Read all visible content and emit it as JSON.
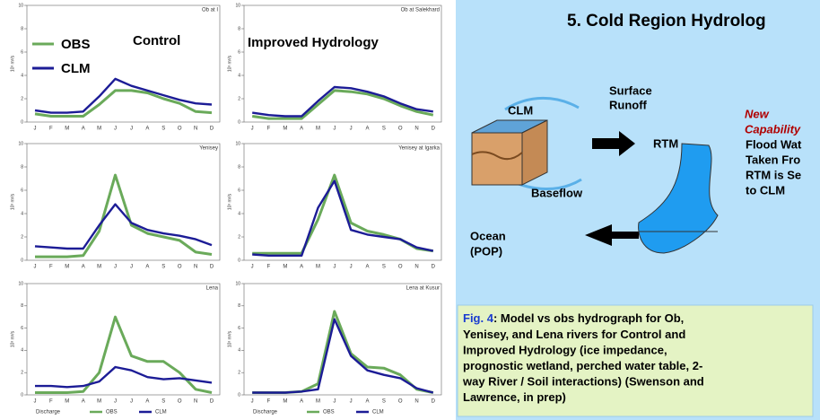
{
  "slide": {
    "title": "5. Cold Region Hydrolog",
    "control_label": "Control",
    "improved_label": "Improved Hydrology",
    "diagram": {
      "clm": "CLM",
      "surface_runoff": [
        "Surface",
        "Runoff"
      ],
      "rtm": "RTM",
      "baseflow": "Baseflow",
      "ocean": [
        "Ocean",
        "(POP)"
      ],
      "new_capability": [
        "New",
        "Capability"
      ],
      "note": [
        "Flood Wat",
        "Taken Fro",
        "RTM is Se",
        "to CLM"
      ]
    },
    "caption": {
      "label": "Fig. 4",
      "lines": [
        ":  Model vs obs hydrograph  for Ob,",
        "Yenisey, and Lena rivers for Control and",
        "Improved Hydrology (ice impedance,",
        "prognostic wetland, perched water table, 2-",
        "way River / Soil interactions) (Swenson and",
        "Lawrence, in prep)"
      ]
    }
  },
  "chart_data": [
    {
      "type": "line",
      "title": "Ob at I",
      "y_label": "10³ m³/s",
      "categories": [
        "J",
        "F",
        "M",
        "A",
        "M",
        "J",
        "J",
        "A",
        "S",
        "O",
        "N",
        "D"
      ],
      "ylim": [
        0,
        10
      ],
      "yticks": [
        0,
        2,
        4,
        6,
        8,
        10
      ],
      "series": [
        {
          "name": "OBS",
          "color": "#6aaa5a",
          "values": [
            0.7,
            0.5,
            0.5,
            0.5,
            1.5,
            2.7,
            2.7,
            2.5,
            2,
            1.6,
            0.9,
            0.8
          ]
        },
        {
          "name": "CLM",
          "color": "#1c1c96",
          "values": [
            1,
            0.8,
            0.8,
            0.9,
            2.2,
            3.7,
            3.1,
            2.7,
            2.3,
            1.9,
            1.6,
            1.5
          ]
        }
      ]
    },
    {
      "type": "line",
      "title": "Ob at Salekhard",
      "y_label": "10³ m³/s",
      "categories": [
        "J",
        "F",
        "M",
        "A",
        "M",
        "J",
        "J",
        "A",
        "S",
        "O",
        "N",
        "D"
      ],
      "ylim": [
        0,
        10
      ],
      "yticks": [
        0,
        2,
        4,
        6,
        8,
        10
      ],
      "series": [
        {
          "name": "OBS",
          "color": "#6aaa5a",
          "values": [
            0.5,
            0.3,
            0.3,
            0.3,
            1.5,
            2.7,
            2.6,
            2.4,
            2,
            1.4,
            0.9,
            0.6
          ]
        },
        {
          "name": "CLM",
          "color": "#1c1c96",
          "values": [
            0.8,
            0.6,
            0.5,
            0.5,
            1.8,
            3,
            2.9,
            2.6,
            2.2,
            1.6,
            1.1,
            0.9
          ]
        }
      ]
    },
    {
      "type": "line",
      "title": "Yenisey",
      "y_label": "10³ m³/s",
      "categories": [
        "J",
        "F",
        "M",
        "A",
        "M",
        "J",
        "J",
        "A",
        "S",
        "O",
        "N",
        "D"
      ],
      "ylim": [
        0,
        10
      ],
      "yticks": [
        0,
        2,
        4,
        6,
        8,
        10
      ],
      "series": [
        {
          "name": "OBS",
          "color": "#6aaa5a",
          "values": [
            0.3,
            0.3,
            0.3,
            0.4,
            2.5,
            7.3,
            3,
            2.3,
            2,
            1.7,
            0.7,
            0.5
          ]
        },
        {
          "name": "CLM",
          "color": "#1c1c96",
          "values": [
            1.2,
            1.1,
            1,
            1,
            3,
            4.8,
            3.2,
            2.6,
            2.3,
            2.1,
            1.8,
            1.3
          ]
        }
      ]
    },
    {
      "type": "line",
      "title": "Yenisey at Igarka",
      "y_label": "10³ m³/s",
      "categories": [
        "J",
        "F",
        "M",
        "A",
        "M",
        "J",
        "J",
        "A",
        "S",
        "O",
        "N",
        "D"
      ],
      "ylim": [
        0,
        10
      ],
      "yticks": [
        0,
        2,
        4,
        6,
        8,
        10
      ],
      "series": [
        {
          "name": "OBS",
          "color": "#6aaa5a",
          "values": [
            0.6,
            0.6,
            0.6,
            0.6,
            3.5,
            7.3,
            3.2,
            2.5,
            2.2,
            1.8,
            1,
            0.8
          ]
        },
        {
          "name": "CLM",
          "color": "#1c1c96",
          "values": [
            0.5,
            0.4,
            0.4,
            0.4,
            4.5,
            6.8,
            2.6,
            2.2,
            2,
            1.8,
            1.1,
            0.8
          ]
        }
      ]
    },
    {
      "type": "line",
      "title": "Lena",
      "y_label": "10³ m³/s",
      "legend_title": "Discharge",
      "categories": [
        "J",
        "F",
        "M",
        "A",
        "M",
        "J",
        "J",
        "A",
        "S",
        "O",
        "N",
        "D"
      ],
      "ylim": [
        0,
        10
      ],
      "yticks": [
        0,
        2,
        4,
        6,
        8,
        10
      ],
      "series": [
        {
          "name": "OBS",
          "color": "#6aaa5a",
          "values": [
            0.2,
            0.2,
            0.2,
            0.3,
            2,
            7,
            3.5,
            3,
            3,
            2,
            0.5,
            0.2
          ]
        },
        {
          "name": "CLM",
          "color": "#1c1c96",
          "values": [
            0.8,
            0.8,
            0.7,
            0.8,
            1.2,
            2.5,
            2.2,
            1.6,
            1.4,
            1.5,
            1.3,
            1.1
          ]
        }
      ]
    },
    {
      "type": "line",
      "title": "Lena at Kusur",
      "y_label": "10³ m³/s",
      "legend_title": "Discharge",
      "categories": [
        "J",
        "F",
        "M",
        "A",
        "M",
        "J",
        "J",
        "A",
        "S",
        "O",
        "N",
        "D"
      ],
      "ylim": [
        0,
        10
      ],
      "yticks": [
        0,
        2,
        4,
        6,
        8,
        10
      ],
      "series": [
        {
          "name": "OBS",
          "color": "#6aaa5a",
          "values": [
            0.2,
            0.2,
            0.2,
            0.3,
            1,
            7.5,
            3.7,
            2.5,
            2.4,
            1.8,
            0.5,
            0.2
          ]
        },
        {
          "name": "CLM",
          "color": "#1c1c96",
          "values": [
            0.2,
            0.2,
            0.2,
            0.3,
            0.5,
            6.8,
            3.5,
            2.2,
            1.8,
            1.5,
            0.6,
            0.2
          ]
        }
      ]
    }
  ]
}
